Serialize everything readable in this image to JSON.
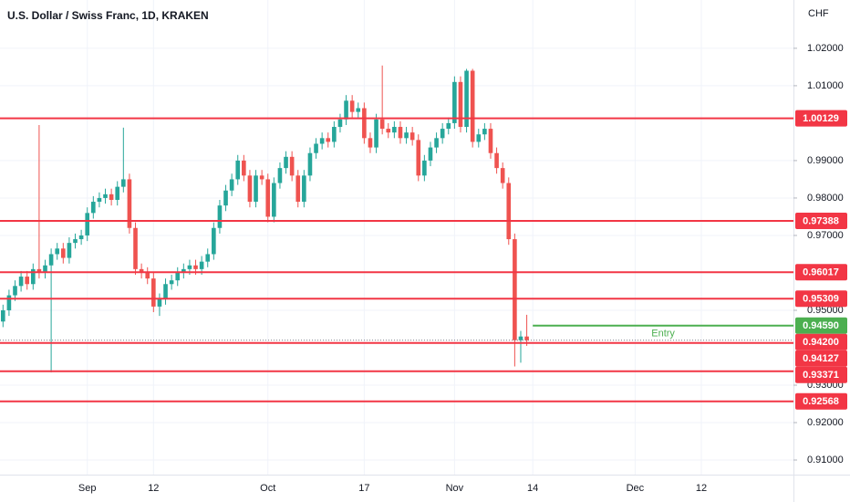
{
  "chart_data": {
    "type": "candlestick",
    "title": "U.S. Dollar / Swiss Franc, 1D, KRAKEN",
    "y_unit": "CHF",
    "up_color": "#26a69a",
    "down_color": "#ef5350",
    "grid": true,
    "xlim": [
      -0.5,
      131.3
    ],
    "xticks": [
      {
        "value": 14,
        "label": "Sep"
      },
      {
        "value": 25,
        "label": "12"
      },
      {
        "value": 44,
        "label": "Oct"
      },
      {
        "value": 60,
        "label": "17"
      },
      {
        "value": 75,
        "label": "Nov"
      },
      {
        "value": 88,
        "label": "14"
      },
      {
        "value": 105,
        "label": "Dec"
      },
      {
        "value": 116,
        "label": "12"
      }
    ],
    "ylim": [
      0.9061,
      1.0329
    ],
    "yticks": [
      {
        "value": 1.02,
        "label": "1.02000"
      },
      {
        "value": 1.01,
        "label": "1.01000"
      },
      {
        "value": 0.99,
        "label": "0.99000"
      },
      {
        "value": 0.98,
        "label": "0.98000"
      },
      {
        "value": 0.97,
        "label": "0.97000"
      },
      {
        "value": 0.95,
        "label": "0.95000"
      },
      {
        "value": 0.93,
        "label": "0.93000"
      },
      {
        "value": 0.92,
        "label": "0.92000"
      },
      {
        "value": 0.91,
        "label": "0.91000"
      }
    ],
    "open": [
      0.947,
      0.95,
      0.954,
      0.9565,
      0.959,
      0.957,
      0.961,
      0.96,
      0.962,
      0.965,
      0.9665,
      0.964,
      0.968,
      0.969,
      0.97,
      0.976,
      0.979,
      0.98,
      0.981,
      0.9795,
      0.983,
      0.985,
      0.972,
      0.961,
      0.96,
      0.9585,
      0.951,
      0.953,
      0.957,
      0.958,
      0.96,
      0.961,
      0.962,
      0.961,
      0.963,
      0.965,
      0.972,
      0.978,
      0.982,
      0.985,
      0.99,
      0.986,
      0.979,
      0.986,
      0.985,
      0.975,
      0.984,
      0.988,
      0.991,
      0.986,
      0.979,
      0.986,
      0.992,
      0.9945,
      0.996,
      0.995,
      0.999,
      1.001,
      1.006,
      1.003,
      1.004,
      0.996,
      0.9935,
      1.001,
      0.9985,
      0.9975,
      0.999,
      0.996,
      0.9975,
      0.9955,
      0.986,
      0.99,
      0.9935,
      0.996,
      0.9985,
      1.0,
      1.011,
      0.999,
      1.014,
      0.995,
      0.997,
      0.9985,
      0.992,
      0.988,
      0.984,
      0.969,
      0.942,
      0.943
    ],
    "high": [
      0.9515,
      0.9555,
      0.958,
      0.9605,
      0.9605,
      0.9625,
      0.9995,
      0.9635,
      0.9665,
      0.968,
      0.968,
      0.9695,
      0.9705,
      0.9715,
      0.9775,
      0.9805,
      0.9815,
      0.9825,
      0.9825,
      0.9845,
      0.9988,
      0.9865,
      0.9735,
      0.9625,
      0.9615,
      0.96,
      0.9545,
      0.9585,
      0.9595,
      0.9615,
      0.9625,
      0.9635,
      0.9635,
      0.9645,
      0.9665,
      0.9735,
      0.9795,
      0.9835,
      0.9865,
      0.9915,
      0.9915,
      0.9875,
      0.9875,
      0.9875,
      0.9865,
      0.9855,
      0.9895,
      0.9925,
      0.9925,
      0.9875,
      0.9875,
      0.9935,
      0.996,
      0.9975,
      0.9975,
      1.0005,
      1.0025,
      1.0075,
      1.0075,
      1.0055,
      1.0055,
      0.9975,
      1.0025,
      1.0154,
      1.0,
      1.0005,
      1.0005,
      0.999,
      0.999,
      0.997,
      0.9915,
      0.995,
      0.9975,
      1.0,
      1.0015,
      1.0125,
      1.0125,
      1.0145,
      1.0145,
      0.9985,
      1.0,
      1.0,
      0.9935,
      0.9895,
      0.9855,
      0.9705,
      0.9445,
      0.9488
    ],
    "low": [
      0.9455,
      0.9485,
      0.9525,
      0.955,
      0.9555,
      0.9555,
      0.9585,
      0.9585,
      0.9334,
      0.9635,
      0.9625,
      0.9625,
      0.9665,
      0.9675,
      0.9685,
      0.9745,
      0.9775,
      0.9785,
      0.978,
      0.978,
      0.9815,
      0.9705,
      0.9595,
      0.9585,
      0.957,
      0.9495,
      0.9485,
      0.9515,
      0.9555,
      0.9565,
      0.9585,
      0.9595,
      0.9595,
      0.9595,
      0.9615,
      0.9635,
      0.9705,
      0.9765,
      0.9805,
      0.9835,
      0.9845,
      0.9775,
      0.9775,
      0.9835,
      0.9735,
      0.9735,
      0.9825,
      0.9865,
      0.9845,
      0.9775,
      0.9775,
      0.9845,
      0.9905,
      0.993,
      0.9935,
      0.9935,
      0.9975,
      0.9995,
      1.0015,
      1.0015,
      0.9945,
      0.992,
      0.992,
      0.997,
      0.996,
      0.996,
      0.9945,
      0.9945,
      0.994,
      0.9845,
      0.9845,
      0.9885,
      0.992,
      0.9945,
      0.997,
      0.9985,
      0.9975,
      0.9975,
      0.9935,
      0.9935,
      0.9955,
      0.9905,
      0.9865,
      0.9825,
      0.9675,
      0.935,
      0.936,
      0.9405
    ],
    "close": [
      0.95,
      0.954,
      0.9565,
      0.959,
      0.957,
      0.961,
      0.96,
      0.962,
      0.965,
      0.9665,
      0.964,
      0.968,
      0.969,
      0.97,
      0.976,
      0.979,
      0.98,
      0.981,
      0.9795,
      0.983,
      0.985,
      0.972,
      0.961,
      0.96,
      0.9585,
      0.951,
      0.953,
      0.957,
      0.958,
      0.96,
      0.961,
      0.962,
      0.961,
      0.963,
      0.965,
      0.972,
      0.978,
      0.982,
      0.985,
      0.99,
      0.986,
      0.979,
      0.986,
      0.985,
      0.975,
      0.984,
      0.988,
      0.991,
      0.986,
      0.979,
      0.986,
      0.992,
      0.9945,
      0.996,
      0.995,
      0.999,
      1.001,
      1.006,
      1.003,
      1.004,
      0.996,
      0.9935,
      1.001,
      0.9985,
      0.9975,
      0.999,
      0.996,
      0.9975,
      0.9955,
      0.986,
      0.99,
      0.9935,
      0.996,
      0.9985,
      1.0,
      1.011,
      0.999,
      1.014,
      0.995,
      0.997,
      0.9985,
      0.992,
      0.988,
      0.984,
      0.969,
      0.942,
      0.943,
      0.942
    ],
    "levels": {
      "color": "#f23645",
      "values": [
        1.00129,
        0.97388,
        0.96017,
        0.95309,
        0.94127,
        0.93371,
        0.92568
      ],
      "value_labels": [
        "1.00129",
        "0.97388",
        "0.96017",
        "0.95309",
        "0.94127",
        "0.93371",
        "0.92568"
      ]
    },
    "last_price": {
      "value": 0.942,
      "value_label": "0.94200",
      "color": "#f23645"
    },
    "entry": {
      "text": "Entry",
      "value": 0.9459,
      "value_label": "0.94590",
      "color": "#4caf50"
    }
  }
}
